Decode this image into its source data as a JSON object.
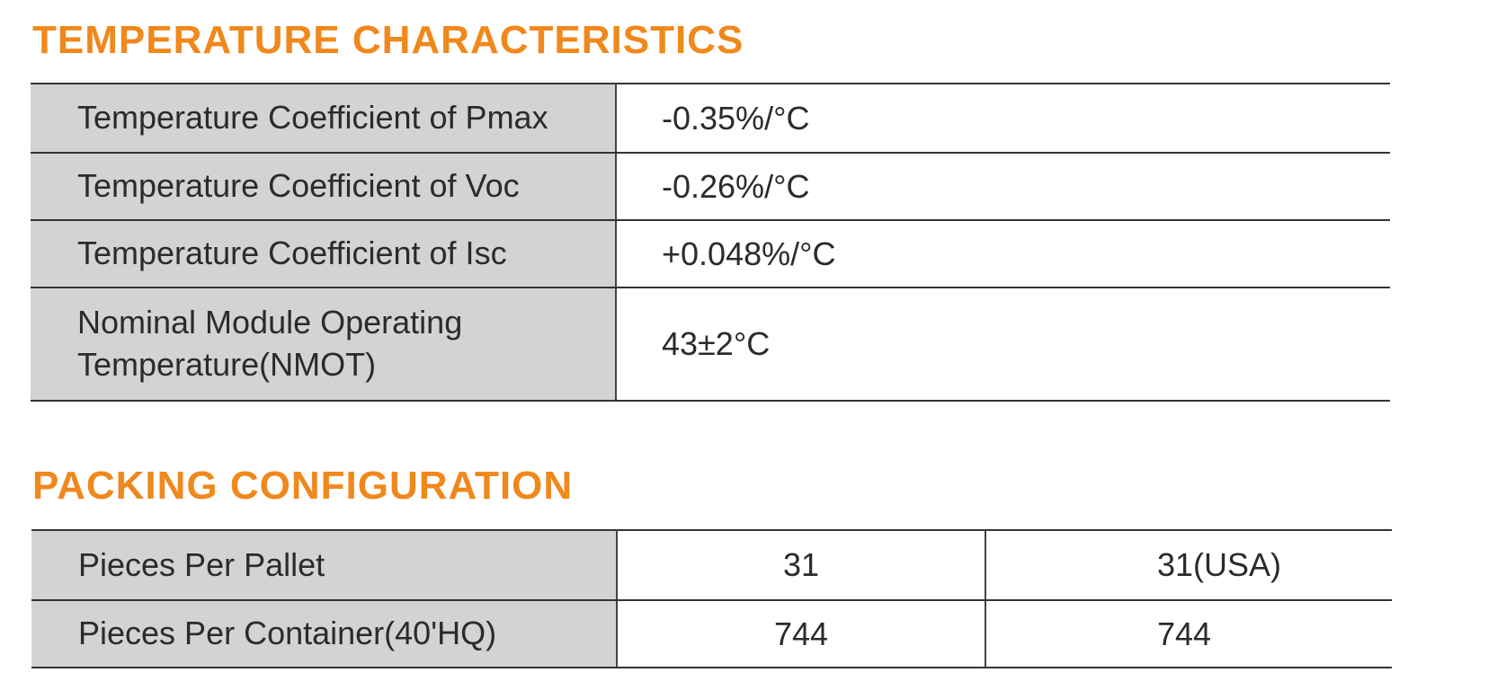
{
  "temperature": {
    "title": "TEMPERATURE CHARACTERISTICS",
    "rows": [
      [
        "Temperature Coefficient of Pmax",
        "-0.35%/°C"
      ],
      [
        "Temperature Coefficient of Voc",
        "-0.26%/°C"
      ],
      [
        "Temperature Coefficient of Isc",
        "+0.048%/°C"
      ],
      [
        "Nominal Module Operating Temperature(NMOT)",
        "43±2°C"
      ]
    ]
  },
  "packing": {
    "title": "PACKING CONFIGURATION",
    "rows": [
      [
        "Pieces Per Pallet",
        "31",
        "31(USA)"
      ],
      [
        "Pieces Per Container(40'HQ)",
        "744",
        "744"
      ]
    ]
  }
}
